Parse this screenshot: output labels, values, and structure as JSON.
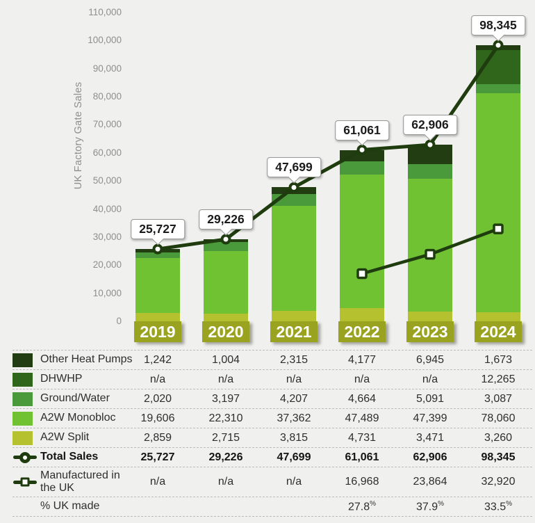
{
  "page": {
    "background": "#f0f0ee"
  },
  "chart_data": {
    "type": "bar",
    "subtype": "stacked-bars-with-lines",
    "title": "",
    "xlabel": "",
    "ylabel": "UK Factory Gate Sales",
    "categories": [
      "2019",
      "2020",
      "2021",
      "2022",
      "2023",
      "2024"
    ],
    "ylim": [
      0,
      110000
    ],
    "grid": "off",
    "yticks": [
      {
        "value": 0,
        "label": "0"
      },
      {
        "value": 10000,
        "label": "10,000"
      },
      {
        "value": 20000,
        "label": "20,000"
      },
      {
        "value": 30000,
        "label": "30,000"
      },
      {
        "value": 40000,
        "label": "40,000"
      },
      {
        "value": 50000,
        "label": "50,000"
      },
      {
        "value": 60000,
        "label": "60,000"
      },
      {
        "value": 70000,
        "label": "70,000"
      },
      {
        "value": 80000,
        "label": "80,000"
      },
      {
        "value": 90000,
        "label": "90,000"
      },
      {
        "value": 100000,
        "label": "100,000"
      },
      {
        "value": 110000,
        "label": "110,000"
      }
    ],
    "bar_series": [
      {
        "name": "A2W Split",
        "color": "#b5c12f",
        "values": [
          2859,
          2715,
          3815,
          4731,
          3471,
          3260
        ]
      },
      {
        "name": "A2W Monobloc",
        "color": "#70c232",
        "values": [
          19606,
          22310,
          37362,
          47489,
          47399,
          78060
        ]
      },
      {
        "name": "Ground/Water",
        "color": "#4a9a3c",
        "values": [
          2020,
          3197,
          4207,
          4664,
          5091,
          3087
        ]
      },
      {
        "name": "DHWHP",
        "color": "#2f661c",
        "values": [
          null,
          null,
          null,
          null,
          null,
          12265
        ]
      },
      {
        "name": "Other Heat Pumps",
        "color": "#213d11",
        "values": [
          1242,
          1004,
          2315,
          4177,
          6945,
          1673
        ]
      }
    ],
    "line_series": [
      {
        "name": "Total Sales",
        "marker": "circle",
        "color": "#1e3c0e",
        "values": [
          25727,
          29226,
          47699,
          61061,
          62906,
          98345
        ],
        "point_labels": [
          "25,727",
          "29,226",
          "47,699",
          "61,061",
          "62,906",
          "98,345"
        ]
      },
      {
        "name": "Manufactured in the UK",
        "marker": "square",
        "color": "#1e3c0e",
        "values": [
          null,
          null,
          null,
          16968,
          23864,
          32920
        ],
        "point_labels": []
      }
    ],
    "year_label_style": {
      "background": "#9aa320",
      "text_color": "#ffffff"
    },
    "legend_position": "in-table-below"
  },
  "table": {
    "rows": [
      {
        "swatch": "#213d11",
        "label": "Other Heat Pumps",
        "values": [
          "1,242",
          "1,004",
          "2,315",
          "4,177",
          "6,945",
          "1,673"
        ]
      },
      {
        "swatch": "#2f661c",
        "label": "DHWHP",
        "values": [
          "n/a",
          "n/a",
          "n/a",
          "n/a",
          "n/a",
          "12,265"
        ]
      },
      {
        "swatch": "#4a9a3c",
        "label": "Ground/Water",
        "values": [
          "2,020",
          "3,197",
          "4,207",
          "4,664",
          "5,091",
          "3,087"
        ]
      },
      {
        "swatch": "#70c232",
        "label": "A2W Monobloc",
        "values": [
          "19,606",
          "22,310",
          "37,362",
          "47,489",
          "47,399",
          "78,060"
        ]
      },
      {
        "swatch": "#b5c12f",
        "label": "A2W Split",
        "values": [
          "2,859",
          "2,715",
          "3,815",
          "4,731",
          "3,471",
          "3,260"
        ]
      },
      {
        "icon": "line-circle",
        "label": "Total Sales",
        "bold": true,
        "values": [
          "25,727",
          "29,226",
          "47,699",
          "61,061",
          "62,906",
          "98,345"
        ]
      },
      {
        "icon": "line-square",
        "label": "Manufactured in the UK",
        "tall": true,
        "wrap": true,
        "values": [
          "n/a",
          "n/a",
          "n/a",
          "16,968",
          "23,864",
          "32,920"
        ]
      },
      {
        "label": "% UK made",
        "values": [
          "",
          "",
          "",
          "27.8%",
          "37.9%",
          "33.5%"
        ]
      }
    ]
  }
}
